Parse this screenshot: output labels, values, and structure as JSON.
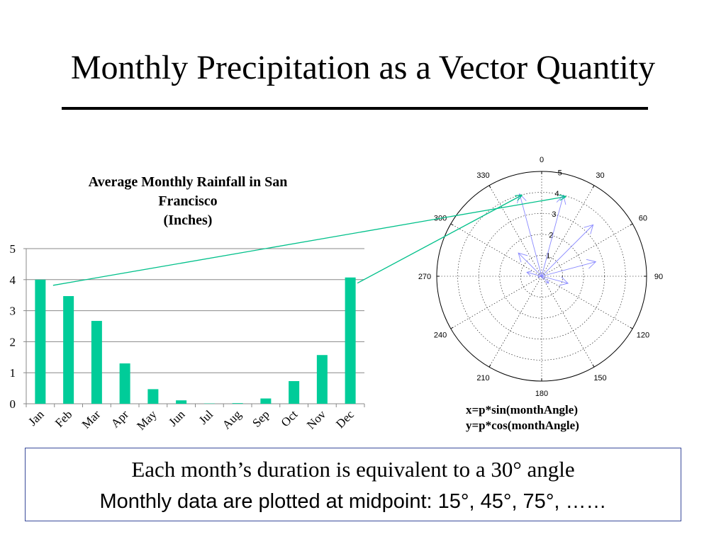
{
  "slide": {
    "title": "Monthly Precipitation as a Vector Quantity",
    "formula_x": "x=p*sin(monthAngle)",
    "formula_y": "y=p*cos(monthAngle)",
    "note_line1": "Each month’s duration is equivalent to a 30° angle",
    "note_line2": "Monthly data are plotted at midpoint: 15°, 45°, 75°, ……"
  },
  "colors": {
    "bar": "#00cc99",
    "arrow": "#00c08a",
    "vector": "#8a8aff",
    "polar_grid": "#000000"
  },
  "chart_data": [
    {
      "type": "bar",
      "title_lines": [
        "Average Monthly Rainfall in San",
        "Francisco",
        "(Inches)"
      ],
      "categories": [
        "Jan",
        "Feb",
        "Mar",
        "Apr",
        "May",
        "Jun",
        "Jul",
        "Aug",
        "Sep",
        "Oct",
        "Nov",
        "Dec"
      ],
      "values": [
        4.0,
        3.47,
        2.67,
        1.3,
        0.47,
        0.11,
        0.01,
        0.02,
        0.17,
        0.73,
        1.57,
        4.07
      ],
      "ylim": [
        0,
        5
      ],
      "yticks": [
        "0",
        "1",
        "2",
        "3",
        "4",
        "5"
      ],
      "grid": true
    },
    {
      "type": "polar",
      "angle_labels": [
        "0",
        "30",
        "60",
        "90",
        "120",
        "150",
        "180",
        "210",
        "240",
        "270",
        "300",
        "330"
      ],
      "radial_labels": [
        "1",
        "2",
        "3",
        "4",
        "5"
      ],
      "rlim": [
        0,
        5
      ],
      "vector_angles_deg": [
        15,
        45,
        75,
        105,
        135,
        165,
        195,
        225,
        255,
        285,
        315,
        345
      ],
      "vector_values": [
        4.0,
        3.47,
        2.67,
        1.3,
        0.47,
        0.11,
        0.01,
        0.02,
        0.17,
        0.73,
        1.57,
        4.07
      ]
    }
  ]
}
